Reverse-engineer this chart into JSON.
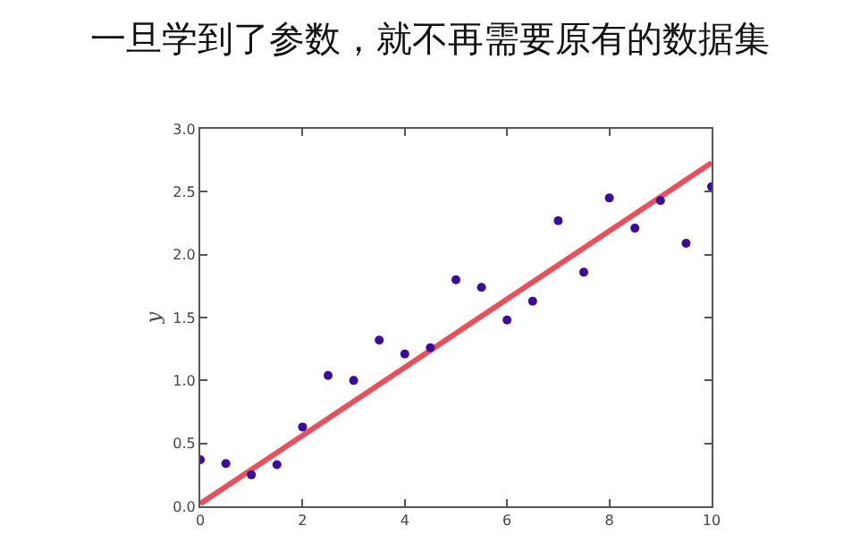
{
  "chart_data": {
    "type": "scatter",
    "title": "一旦学到了参数，就不再需要原有的数据集",
    "ylabel": "y",
    "x": [
      0,
      0.5,
      1,
      1.5,
      2,
      2.5,
      3,
      3.5,
      4,
      4.5,
      5,
      5.5,
      6,
      6.5,
      7,
      7.5,
      8,
      8.5,
      9,
      9.5,
      10
    ],
    "series": [
      {
        "marker": "circle",
        "color": "#3a0b9c",
        "values": [
          0.37,
          0.34,
          0.25,
          0.33,
          0.63,
          1.04,
          1.0,
          1.32,
          1.21,
          1.26,
          1.8,
          1.74,
          1.48,
          1.63,
          2.27,
          1.86,
          2.45,
          2.21,
          2.43,
          2.09,
          2.54
        ]
      },
      {
        "type": "line",
        "color": "#e8505b",
        "x": [
          0,
          10
        ],
        "values": [
          0.02,
          2.73
        ]
      }
    ],
    "xlim": [
      0,
      10
    ],
    "xticks": [
      0,
      2,
      4,
      6,
      8,
      10
    ],
    "ylim": [
      0,
      3
    ],
    "yticks": [
      {
        "value": 0,
        "label": "0.0"
      },
      {
        "value": 0.5,
        "label": "0.5"
      },
      {
        "value": 1,
        "label": "1.0"
      },
      {
        "value": 1.5,
        "label": "1.5"
      },
      {
        "value": 2,
        "label": "2.0"
      },
      {
        "value": 2.5,
        "label": "2.5"
      },
      {
        "value": 3,
        "label": "3.0"
      }
    ]
  }
}
